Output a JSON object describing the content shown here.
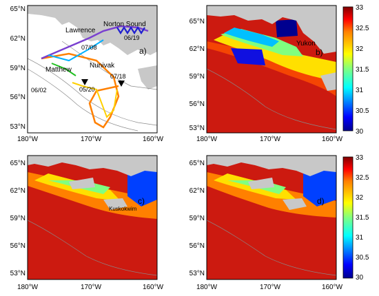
{
  "panels": [
    {
      "id": "a",
      "tag": "a)",
      "y_ticks": [
        "65°N",
        "62°N",
        "59°N",
        "56°N",
        "53°N"
      ],
      "x_ticks": [
        "180°W",
        "170°W",
        "160°W"
      ],
      "places": [
        "Lawrence",
        "Norton Sound",
        "Matthew",
        "Nunivak"
      ],
      "dates": [
        "06/19",
        "07/08",
        "06/02",
        "07/18",
        "05/20"
      ]
    },
    {
      "id": "b",
      "tag": "b)",
      "y_ticks": [
        "65°N",
        "62°N",
        "59°N",
        "56°N",
        "53°N"
      ],
      "x_ticks": [
        "180°W",
        "170°W",
        "160°W"
      ],
      "places": [
        "Yukon"
      ]
    },
    {
      "id": "c",
      "tag": "c)",
      "y_ticks": [
        "65°N",
        "62°N",
        "59°N",
        "56°N",
        "53°N"
      ],
      "x_ticks": [
        "180°W",
        "170°W",
        "160°W"
      ],
      "places": [
        "Kuskokwim"
      ]
    },
    {
      "id": "d",
      "tag": "d)",
      "y_ticks": [
        "65°N",
        "62°N",
        "59°N",
        "56°N",
        "53°N"
      ],
      "x_ticks": [
        "180°W",
        "170°W",
        "160°W"
      ]
    }
  ],
  "colorbar": {
    "ticks": [
      "33",
      "32.5",
      "32",
      "31.5",
      "31",
      "30.5",
      "30"
    ],
    "range": [
      30,
      33
    ],
    "colormap": [
      "#00008f",
      "#0000ff",
      "#0080ff",
      "#00ffff",
      "#80ff80",
      "#ffff00",
      "#ff8000",
      "#ff0000",
      "#800000"
    ]
  },
  "colors": {
    "land": "#c8c8c8",
    "sea_dominant": "#cc1a10",
    "contour": "#8a8a8a"
  }
}
